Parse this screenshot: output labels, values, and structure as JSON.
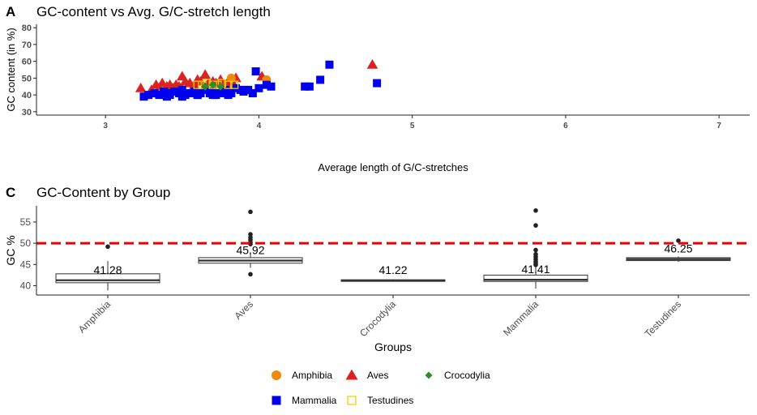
{
  "colors": {
    "Amphibia": "#f08a0a",
    "Aves": "#dd2222",
    "Crocodylia": "#2e8b2e",
    "Mammalia": "#0000ee",
    "Testudines": "#f5d000",
    "reference": "#ee0000",
    "axis": "#222222",
    "tick_text": "#4d4d4d"
  },
  "chart_data": [
    {
      "panel_tag": "A",
      "type": "scatter",
      "title": "GC-content vs Avg. G/C-stretch length",
      "xlabel": "Average length of G/C-stretches",
      "ylabel": "GC content (in %)",
      "xlim": [
        2.55,
        7.2
      ],
      "ylim": [
        28,
        82
      ],
      "xticks": [
        3,
        4,
        5,
        6,
        7
      ],
      "yticks": [
        30,
        40,
        50,
        60,
        70,
        80
      ],
      "grid": false,
      "series": [
        {
          "name": "Aves",
          "marker": "triangle",
          "x": [
            3.23,
            3.33,
            3.35,
            3.37,
            3.4,
            3.42,
            3.44,
            3.46,
            3.48,
            3.5,
            3.52,
            3.55,
            3.58,
            3.6,
            3.62,
            3.65,
            3.67,
            3.7,
            3.72,
            3.75,
            3.78,
            3.8,
            3.83,
            3.85,
            3.3,
            3.5,
            3.65,
            4.02,
            4.74
          ],
          "y": [
            44,
            46,
            44,
            47,
            45,
            46,
            44,
            46,
            45,
            51,
            48,
            47,
            46,
            49,
            48,
            52,
            47,
            48,
            47,
            49,
            46,
            48,
            47,
            50,
            43,
            43,
            44,
            51,
            58
          ]
        },
        {
          "name": "Amphibia",
          "marker": "circle",
          "x": [
            3.36,
            3.82,
            4.05
          ],
          "y": [
            41,
            50,
            49
          ]
        },
        {
          "name": "Mammalia",
          "marker": "square",
          "x": [
            3.25,
            3.28,
            3.32,
            3.35,
            3.38,
            3.4,
            3.42,
            3.45,
            3.48,
            3.5,
            3.52,
            3.55,
            3.58,
            3.6,
            3.62,
            3.65,
            3.68,
            3.7,
            3.72,
            3.75,
            3.78,
            3.8,
            3.82,
            3.85,
            3.88,
            3.9,
            3.93,
            3.96,
            3.98,
            4.0,
            4.05,
            4.08,
            4.3,
            4.33,
            4.4,
            4.46,
            4.77,
            3.4,
            3.5,
            3.6,
            3.7,
            3.8
          ],
          "y": [
            39,
            40,
            41,
            40,
            42,
            41,
            40,
            42,
            41,
            43,
            40,
            41,
            42,
            40,
            41,
            43,
            41,
            42,
            40,
            41,
            43,
            42,
            41,
            44,
            43,
            42,
            43,
            41,
            54,
            44,
            46,
            45,
            45,
            45,
            49,
            58,
            47,
            39,
            39,
            40,
            40,
            40
          ]
        },
        {
          "name": "Testudines",
          "marker": "open-square",
          "x": [
            3.6,
            3.63,
            3.66,
            3.7,
            3.73,
            3.76,
            3.8,
            3.84
          ],
          "y": [
            46,
            46,
            47,
            46,
            46,
            47,
            46,
            46
          ]
        },
        {
          "name": "Crocodylia",
          "marker": "diamond",
          "x": [
            3.65,
            3.7,
            3.75
          ],
          "y": [
            45,
            46,
            45
          ]
        }
      ]
    },
    {
      "panel_tag": "C",
      "type": "box",
      "title": "GC-Content by Group",
      "xlabel": "Groups",
      "ylabel": "GC %",
      "ylim": [
        37.8,
        58.8
      ],
      "yticks": [
        40,
        45,
        50,
        55
      ],
      "grid": false,
      "reference_line": 50,
      "categories": [
        "Amphibia",
        "Aves",
        "Crocodylia",
        "Mammalia",
        "Testudines"
      ],
      "boxes": [
        {
          "group": "Amphibia",
          "min": 38.9,
          "q1": 40.7,
          "median": 41.28,
          "q3": 42.8,
          "max": 45.8,
          "outliers": [
            49.2
          ],
          "label": "41.28"
        },
        {
          "group": "Aves",
          "min": 44.2,
          "q1": 45.3,
          "median": 45.92,
          "q3": 46.6,
          "max": 47.9,
          "outliers": [
            42.7,
            49.8,
            50.2,
            50.8,
            51.4,
            52.1,
            57.4
          ],
          "label": "45.92"
        },
        {
          "group": "Crocodylia",
          "min": 41.0,
          "q1": 41.05,
          "median": 41.22,
          "q3": 41.4,
          "max": 41.5,
          "outliers": [],
          "label": "41.22"
        },
        {
          "group": "Mammalia",
          "min": 39.3,
          "q1": 41.0,
          "median": 41.41,
          "q3": 42.5,
          "max": 44.5,
          "outliers": [
            44.9,
            45.3,
            45.7,
            46.2,
            46.8,
            47.4,
            48.4,
            54.2,
            57.7
          ],
          "label": "41.41"
        },
        {
          "group": "Testudines",
          "min": 45.6,
          "q1": 45.9,
          "median": 46.25,
          "q3": 46.6,
          "max": 46.9,
          "outliers": [
            50.6
          ],
          "label": "46.25"
        }
      ]
    }
  ],
  "legend": {
    "placement": "bottom",
    "items": [
      {
        "label": "Amphibia",
        "marker": "circle"
      },
      {
        "label": "Aves",
        "marker": "triangle"
      },
      {
        "label": "Crocodylia",
        "marker": "diamond"
      },
      {
        "label": "Mammalia",
        "marker": "square"
      },
      {
        "label": "Testudines",
        "marker": "open-square"
      }
    ]
  }
}
